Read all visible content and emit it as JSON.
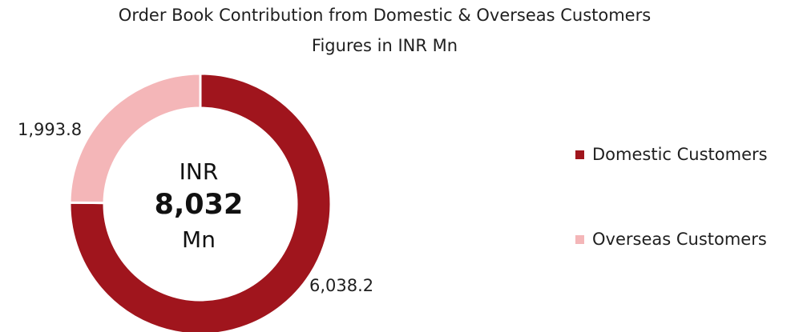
{
  "chart_data": {
    "type": "pie",
    "variant": "donut",
    "title": "Order Book Contribution from Domestic & Overseas Customers",
    "subtitle": "Figures in INR Mn",
    "center_label": {
      "prefix": "INR",
      "value": "8,032",
      "suffix": "Mn"
    },
    "slices": [
      {
        "name": "Domestic Customers",
        "value": 6038.2,
        "label": "6,038.2",
        "color": "#a0151d"
      },
      {
        "name": "Overseas Customers",
        "value": 1993.8,
        "label": "1,993.8",
        "color": "#f4b6b8"
      }
    ],
    "legend_position": "right"
  }
}
